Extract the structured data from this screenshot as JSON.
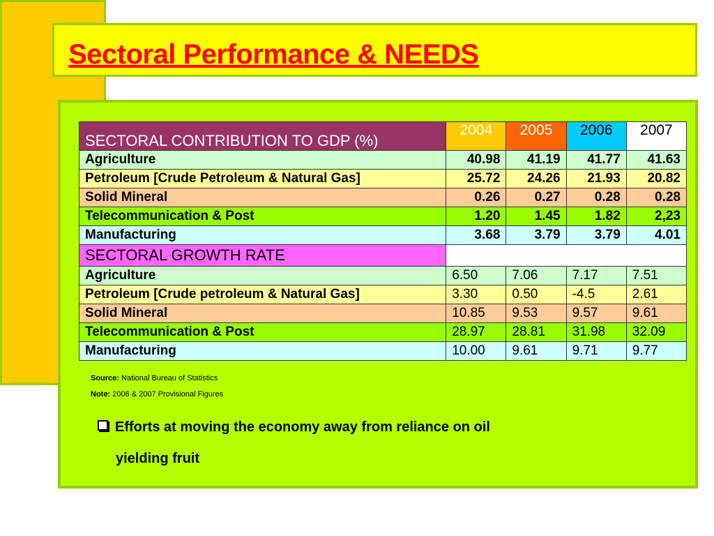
{
  "slide": {
    "title": "Sectoral Performance & NEEDS"
  },
  "contribution": {
    "title": "SECTORAL CONTRIBUTION TO   GDP (%)",
    "years": [
      "2004",
      "2005",
      "2006",
      "2007"
    ],
    "rows": [
      {
        "label": "Agriculture",
        "values": [
          "40.98",
          "41.19",
          "41.77",
          "41.63"
        ]
      },
      {
        "label": "Petroleum [Crude Petroleum & Natural Gas]",
        "values": [
          "25.72",
          "24.26",
          "21.93",
          "20.82"
        ]
      },
      {
        "label": "Solid Mineral",
        "values": [
          "0.26",
          "0.27",
          "0.28",
          "0.28"
        ]
      },
      {
        "label": "Telecommunication & Post",
        "values": [
          "1.20",
          "1.45",
          "1.82",
          "2,23"
        ]
      },
      {
        "label": "Manufacturing",
        "values": [
          "3.68",
          "3.79",
          "3.79",
          "4.01"
        ]
      }
    ]
  },
  "growth": {
    "title": "SECTORAL GROWTH RATE",
    "rows": [
      {
        "label": "Agriculture",
        "values": [
          "6.50",
          "7.06",
          "7.17",
          "7.51"
        ]
      },
      {
        "label": "Petroleum [Crude petroleum & Natural Gas]",
        "values": [
          "3.30",
          "0.50",
          "-4.5",
          "2.61"
        ]
      },
      {
        "label": "Solid Mineral",
        "values": [
          "10.85",
          "9.53",
          "9.57",
          "9.61"
        ]
      },
      {
        "label": "Telecommunication & Post",
        "values": [
          "28.97",
          "28.81",
          "31.98",
          "32.09"
        ]
      },
      {
        "label": "Manufacturing",
        "values": [
          "10.00",
          "9.61",
          "9.71",
          "9.77"
        ]
      }
    ]
  },
  "notes": {
    "source_label": "Source:",
    "source_text": "National Bureau of Statistics",
    "note_label": "Note:",
    "note_text": "2006 & 2007 Provisional Figures"
  },
  "bullet": {
    "icon": "square-bullet-icon",
    "line1": "Efforts at moving the economy away from reliance on oil",
    "line2": "yielding fruit"
  }
}
